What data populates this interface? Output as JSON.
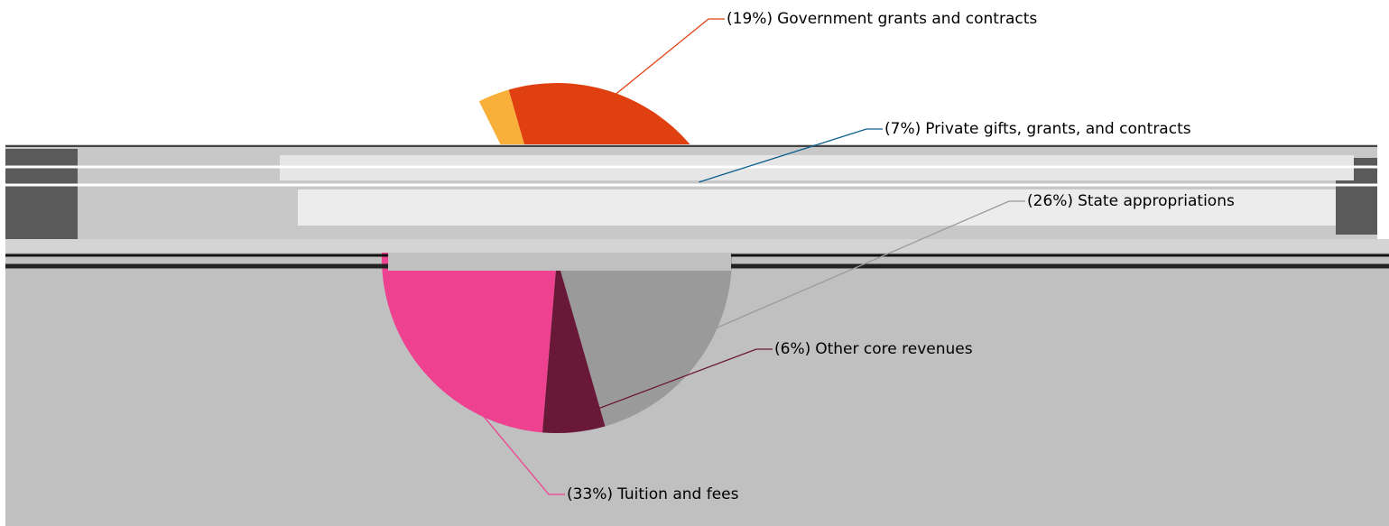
{
  "chart_data": {
    "type": "pie",
    "categories": [
      "Government grants and contracts",
      "Private gifts, grants, and contracts",
      "State appropriations",
      "Other core revenues",
      "Tuition and fees",
      null,
      null
    ],
    "values": [
      19,
      7,
      26,
      6,
      33,
      10,
      3
    ],
    "value_labels": [
      "(19%)",
      "(7%)",
      "(26%)",
      "(6%)",
      "(33%)",
      null,
      null
    ],
    "colors": [
      "#e04010",
      "#0b5e8a",
      "#9a9a9a",
      "#6a1838",
      "#ee4190",
      "#ffffff",
      "#f8b03a"
    ]
  }
}
